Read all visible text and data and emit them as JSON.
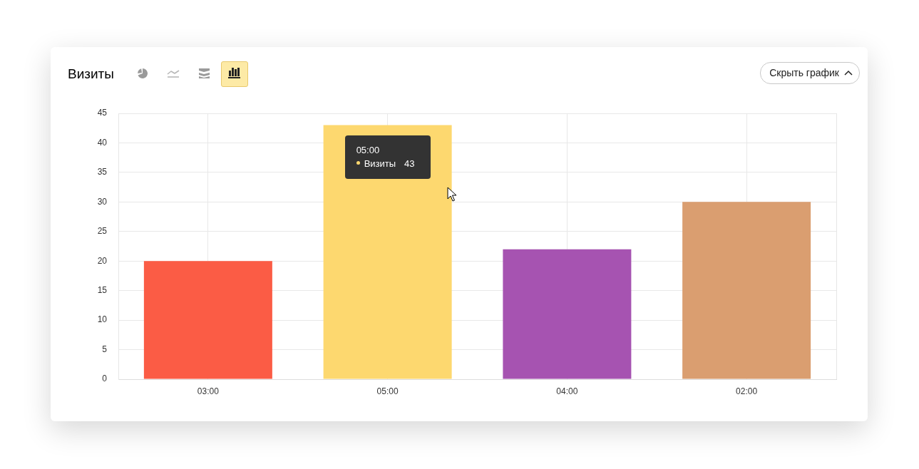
{
  "chart_data": {
    "type": "bar",
    "title": "Визиты",
    "categories": [
      "03:00",
      "05:00",
      "04:00",
      "02:00"
    ],
    "series": [
      {
        "name": "Визиты",
        "colors": [
          "#fb5c45",
          "#fdd86f",
          "#a653b1",
          "#da9e70"
        ],
        "values": [
          20,
          43,
          22,
          30
        ],
        "value_labels": [
          null,
          "43",
          null,
          null
        ]
      }
    ],
    "ylim": [
      0,
      45
    ],
    "yticks": [
      0,
      5,
      10,
      15,
      20,
      25,
      30,
      35,
      40,
      45
    ],
    "grid": true,
    "annotations": [
      "Скрыть график"
    ]
  }
}
